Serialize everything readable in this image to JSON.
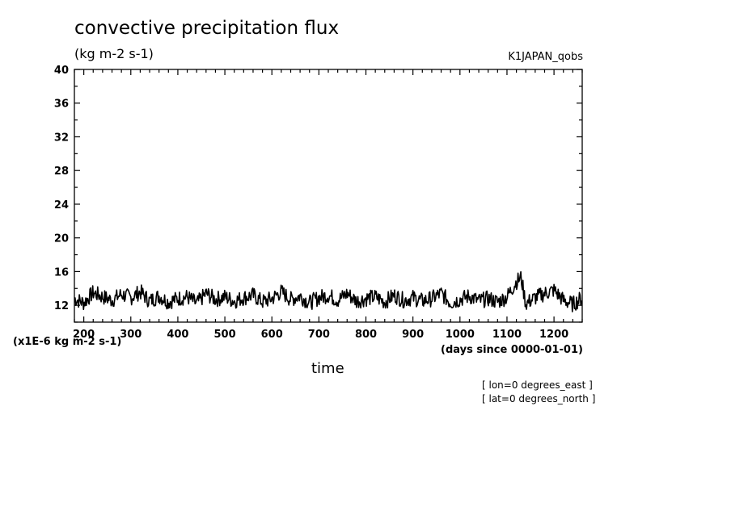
{
  "title": "convective precipitation flux",
  "units": "(kg m-2 s-1)",
  "dataset": "K1JAPAN_qobs",
  "scale_note": "(x1E-6 kg m-2 s-1)",
  "xlabel": "time",
  "xunits": "(days since 0000-01-01)",
  "coords": [
    "[ lon=0 degrees_east ]",
    "[ lat=0 degrees_north ]"
  ],
  "chart_data": {
    "type": "line",
    "title": "convective precipitation flux",
    "ylabel": "(kg m-2 s-1)",
    "xlabel": "time",
    "xlim": [
      180,
      1260
    ],
    "ylim": [
      10,
      40
    ],
    "xticks": [
      200,
      300,
      400,
      500,
      600,
      700,
      800,
      900,
      1000,
      1100,
      1200
    ],
    "yticks": [
      12,
      16,
      20,
      24,
      28,
      32,
      36,
      40
    ],
    "grid": false,
    "series": [
      {
        "x": [
          180,
          200,
          220,
          240,
          260,
          280,
          300,
          320,
          340,
          360,
          380,
          400,
          420,
          440,
          460,
          480,
          500,
          520,
          540,
          560,
          580,
          600,
          620,
          640,
          660,
          680,
          700,
          720,
          740,
          760,
          780,
          800,
          820,
          840,
          860,
          880,
          900,
          920,
          940,
          960,
          980,
          1000,
          1020,
          1040,
          1060,
          1080,
          1100,
          1120,
          1130,
          1140,
          1160,
          1180,
          1200,
          1220,
          1240,
          1260
        ],
        "y": [
          12.8,
          12.3,
          13.5,
          13.0,
          12.6,
          13.3,
          12.9,
          13.6,
          12.5,
          13.1,
          12.4,
          12.8,
          13.0,
          12.2,
          13.4,
          12.7,
          13.0,
          12.5,
          12.9,
          13.2,
          12.4,
          12.8,
          13.6,
          12.7,
          13.1,
          12.3,
          12.9,
          13.2,
          12.6,
          13.4,
          12.5,
          12.8,
          13.0,
          12.4,
          13.2,
          12.6,
          12.9,
          12.5,
          12.8,
          13.4,
          12.3,
          12.7,
          13.1,
          12.5,
          12.8,
          12.4,
          13.0,
          14.8,
          15.3,
          12.2,
          12.9,
          13.4,
          13.8,
          12.6,
          12.1,
          12.9
        ]
      }
    ]
  }
}
